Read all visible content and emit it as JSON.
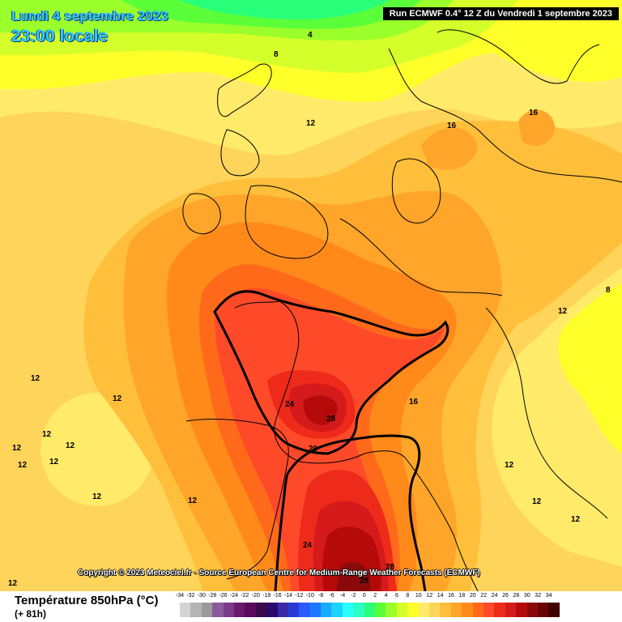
{
  "header": {
    "date_line": "Lundi 4 septembre 2023",
    "time_line": "23:00 locale",
    "run_info": "Run ECMWF 0.4° 12 Z du Vendredi 1 septembre 2023"
  },
  "copyright": "Copyright © 2023 Meteociel.fr - Source European Centre for Medium-Range Weather Forecasts (ECMWF)",
  "footer": {
    "variable": "Température 850hPa (°C)",
    "lead_time": "(+ 81h)"
  },
  "legend": {
    "ticks": [
      "-34",
      "-32",
      "-30",
      "-28",
      "-26",
      "-24",
      "-22",
      "-20",
      "-18",
      "-16",
      "-14",
      "-12",
      "-10",
      "-8",
      "-6",
      "-4",
      "-2",
      "0",
      "2",
      "4",
      "6",
      "8",
      "10",
      "12",
      "14",
      "16",
      "18",
      "20",
      "22",
      "24",
      "26",
      "28",
      "30",
      "32",
      "34"
    ],
    "colors": [
      "#d4d4d4",
      "#b4b4b4",
      "#9a9a9a",
      "#8a5a9a",
      "#7a3a8a",
      "#6a1a6a",
      "#5a0a5a",
      "#3a0a4a",
      "#2a0a6a",
      "#3a2aaa",
      "#2a3ad4",
      "#2a5aff",
      "#1a7aff",
      "#1aaaff",
      "#1ad4ff",
      "#2affff",
      "#2affc4",
      "#2aff7a",
      "#5aff3a",
      "#9aff2a",
      "#d4ff2a",
      "#ffff2a",
      "#ffea6a",
      "#ffd45a",
      "#ffbf3a",
      "#ffa52a",
      "#ff8a1a",
      "#ff6a1a",
      "#ff4a2a",
      "#ee2a1a",
      "#d41a1a",
      "#b40a0a",
      "#8a0a0a",
      "#6a0505",
      "#400000"
    ]
  },
  "isotherm_labels": [
    "4",
    "8",
    "12",
    "12",
    "16",
    "16",
    "12",
    "8",
    "16",
    "12",
    "12",
    "12",
    "12",
    "12",
    "12",
    "24",
    "28",
    "20",
    "12",
    "12",
    "12",
    "12",
    "24",
    "28",
    "28",
    "12",
    "12"
  ]
}
